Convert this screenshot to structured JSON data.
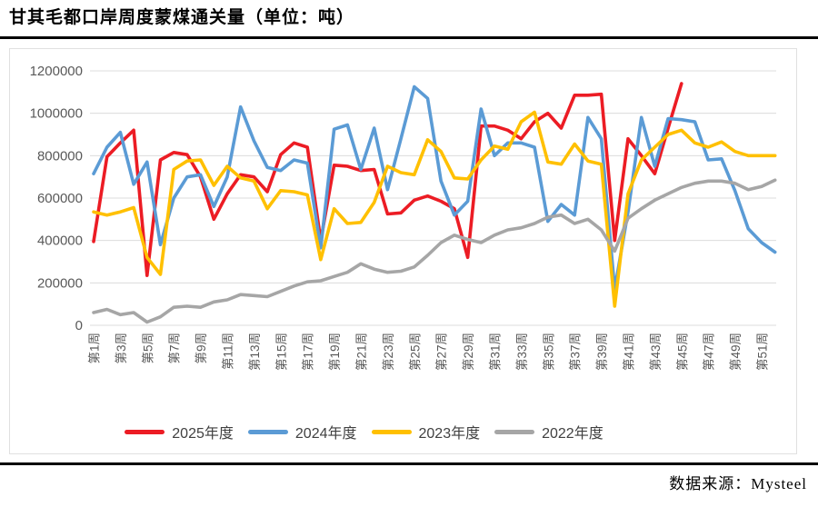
{
  "header": {
    "title": "甘其毛都口岸周度蒙煤通关量（单位：吨）"
  },
  "footer": {
    "source": "数据来源：Mysteel"
  },
  "chart_data": {
    "type": "line",
    "title": "甘其毛都口岸周度蒙煤通关量",
    "unit": "吨",
    "grid": true,
    "legend_position": "bottom",
    "ylim": [
      0,
      1200000
    ],
    "y_tick_step": 200000,
    "y_tick_labels": [
      "0",
      "200000",
      "400000",
      "600000",
      "800000",
      "1000000",
      "1200000"
    ],
    "x_tick_labels": [
      "第1周",
      "第3周",
      "第5周",
      "第7周",
      "第9周",
      "第11周",
      "第13周",
      "第15周",
      "第17周",
      "第19周",
      "第21周",
      "第23周",
      "第25周",
      "第27周",
      "第29周",
      "第31周",
      "第33周",
      "第35周",
      "第37周",
      "第39周",
      "第41周",
      "第43周",
      "第45周",
      "第47周",
      "第49周",
      "第51周"
    ],
    "weeks_total": 52,
    "series": [
      {
        "name": "2025年度",
        "color": "#ec1c24",
        "values": [
          395000,
          795000,
          860000,
          920000,
          235000,
          780000,
          815000,
          805000,
          700000,
          500000,
          620000,
          710000,
          700000,
          630000,
          805000,
          860000,
          840000,
          400000,
          755000,
          750000,
          730000,
          735000,
          525000,
          530000,
          590000,
          610000,
          585000,
          550000,
          320000,
          940000,
          940000,
          920000,
          880000,
          960000,
          1000000,
          930000,
          1085000,
          1085000,
          1090000,
          400000,
          880000,
          800000,
          715000,
          930000,
          1140000
        ]
      },
      {
        "name": "2024年度",
        "color": "#5b9bd5",
        "values": [
          715000,
          840000,
          910000,
          665000,
          770000,
          380000,
          600000,
          700000,
          710000,
          560000,
          700000,
          1030000,
          870000,
          745000,
          730000,
          780000,
          765000,
          365000,
          925000,
          945000,
          735000,
          930000,
          640000,
          880000,
          1125000,
          1070000,
          680000,
          520000,
          585000,
          1020000,
          800000,
          860000,
          860000,
          840000,
          490000,
          570000,
          520000,
          980000,
          880000,
          170000,
          535000,
          980000,
          750000,
          975000,
          970000,
          960000,
          780000,
          785000,
          635000,
          455000,
          390000,
          345000
        ]
      },
      {
        "name": "2023年度",
        "color": "#ffc000",
        "values": [
          535000,
          520000,
          535000,
          555000,
          320000,
          240000,
          735000,
          775000,
          780000,
          660000,
          750000,
          695000,
          680000,
          550000,
          635000,
          630000,
          615000,
          310000,
          550000,
          480000,
          485000,
          580000,
          750000,
          720000,
          710000,
          875000,
          820000,
          695000,
          690000,
          780000,
          845000,
          830000,
          960000,
          1005000,
          770000,
          760000,
          855000,
          775000,
          760000,
          90000,
          620000,
          780000,
          840000,
          900000,
          920000,
          860000,
          840000,
          865000,
          820000,
          800000,
          800000,
          800000
        ]
      },
      {
        "name": "2022年度",
        "color": "#a6a6a6",
        "values": [
          60000,
          75000,
          50000,
          60000,
          15000,
          40000,
          85000,
          90000,
          85000,
          110000,
          120000,
          145000,
          140000,
          135000,
          160000,
          185000,
          205000,
          210000,
          230000,
          250000,
          290000,
          265000,
          250000,
          255000,
          275000,
          330000,
          390000,
          425000,
          405000,
          390000,
          425000,
          450000,
          460000,
          480000,
          510000,
          520000,
          480000,
          500000,
          450000,
          350000,
          505000,
          550000,
          590000,
          620000,
          650000,
          670000,
          680000,
          680000,
          670000,
          640000,
          655000,
          685000
        ]
      }
    ]
  }
}
